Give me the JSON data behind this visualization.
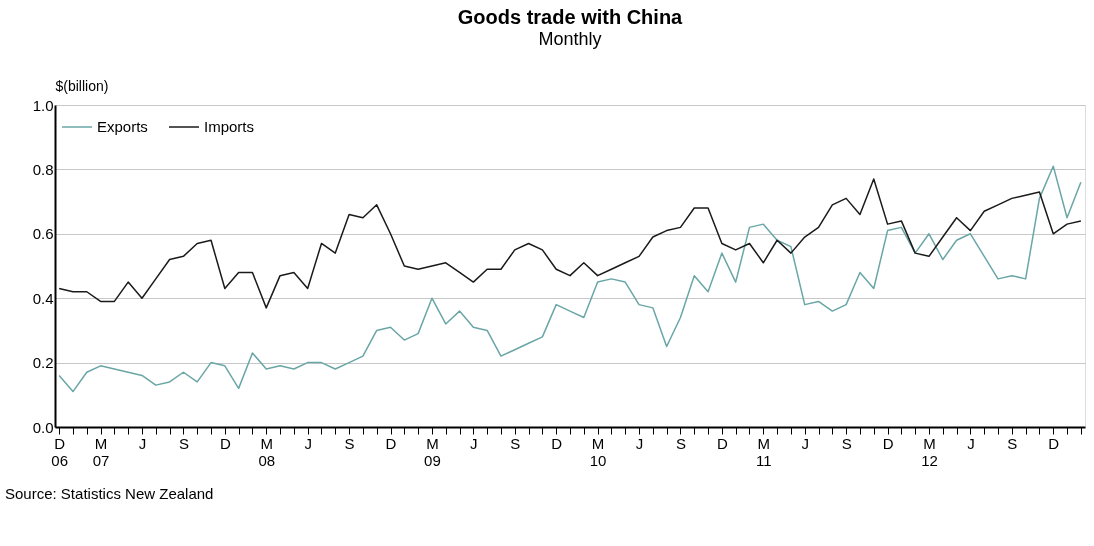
{
  "chart_data": {
    "type": "line",
    "title": "Goods trade with China",
    "subtitle": "Monthly",
    "ylabel": "$(billion)",
    "categories": [
      "D 06",
      null,
      null,
      "M 07",
      null,
      null,
      "J",
      null,
      null,
      "S",
      null,
      null,
      "D",
      null,
      null,
      "M 08",
      null,
      null,
      "J",
      null,
      null,
      "S",
      null,
      null,
      "D",
      null,
      null,
      "M 09",
      null,
      null,
      "J",
      null,
      null,
      "S",
      null,
      null,
      "D",
      null,
      null,
      "M 10",
      null,
      null,
      "J",
      null,
      null,
      "S",
      null,
      null,
      "D",
      null,
      null,
      "M 11",
      null,
      null,
      "J",
      null,
      null,
      "S",
      null,
      null,
      "D",
      null,
      null,
      "M 12",
      null,
      null,
      "J",
      null,
      null,
      "S",
      null,
      null,
      "D",
      null,
      null
    ],
    "series": [
      {
        "name": "Exports",
        "color": "#6aa6a6",
        "values": [
          0.16,
          0.11,
          0.17,
          0.19,
          0.18,
          0.17,
          0.16,
          0.13,
          0.14,
          0.17,
          0.14,
          0.2,
          0.19,
          0.12,
          0.23,
          0.18,
          0.19,
          0.18,
          0.2,
          0.2,
          0.18,
          0.2,
          0.22,
          0.3,
          0.31,
          0.27,
          0.29,
          0.4,
          0.32,
          0.36,
          0.31,
          0.3,
          0.22,
          0.24,
          0.26,
          0.28,
          0.38,
          0.36,
          0.34,
          0.45,
          0.46,
          0.45,
          0.38,
          0.37,
          0.25,
          0.34,
          0.47,
          0.42,
          0.54,
          0.45,
          0.62,
          0.63,
          0.58,
          0.56,
          0.38,
          0.39,
          0.36,
          0.38,
          0.48,
          0.43,
          0.61,
          0.62,
          0.54,
          0.6,
          0.52,
          0.58,
          0.6,
          0.53,
          0.46,
          0.47,
          0.46,
          0.71,
          0.81,
          0.65,
          0.76
        ]
      },
      {
        "name": "Imports",
        "color": "#1a1a1a",
        "values": [
          0.43,
          0.42,
          0.42,
          0.39,
          0.39,
          0.45,
          0.4,
          0.46,
          0.52,
          0.53,
          0.57,
          0.58,
          0.43,
          0.48,
          0.48,
          0.37,
          0.47,
          0.48,
          0.43,
          0.57,
          0.54,
          0.66,
          0.65,
          0.69,
          0.6,
          0.5,
          0.49,
          0.5,
          0.51,
          0.48,
          0.45,
          0.49,
          0.49,
          0.55,
          0.57,
          0.55,
          0.49,
          0.47,
          0.51,
          0.47,
          0.49,
          0.51,
          0.53,
          0.59,
          0.61,
          0.62,
          0.68,
          0.68,
          0.57,
          0.55,
          0.57,
          0.51,
          0.58,
          0.54,
          0.59,
          0.62,
          0.69,
          0.71,
          0.66,
          0.77,
          0.63,
          0.64,
          0.54,
          0.53,
          0.59,
          0.65,
          0.61,
          0.67,
          0.69,
          0.71,
          0.72,
          0.73,
          0.6,
          0.63,
          0.64
        ]
      }
    ],
    "ylim": [
      0,
      1
    ],
    "yticks": [
      {
        "value": 0,
        "label": "0.0"
      },
      {
        "value": 0.2,
        "label": "0.2"
      },
      {
        "value": 0.4,
        "label": "0.4"
      },
      {
        "value": 0.6,
        "label": "0.6"
      },
      {
        "value": 0.8,
        "label": "0.8"
      },
      {
        "value": 1,
        "label": "1.0"
      }
    ],
    "grid": "y",
    "legend": "top left",
    "line_style": "solid",
    "marker": "none",
    "annotations": [
      "Source: Statistics New Zealand"
    ]
  }
}
